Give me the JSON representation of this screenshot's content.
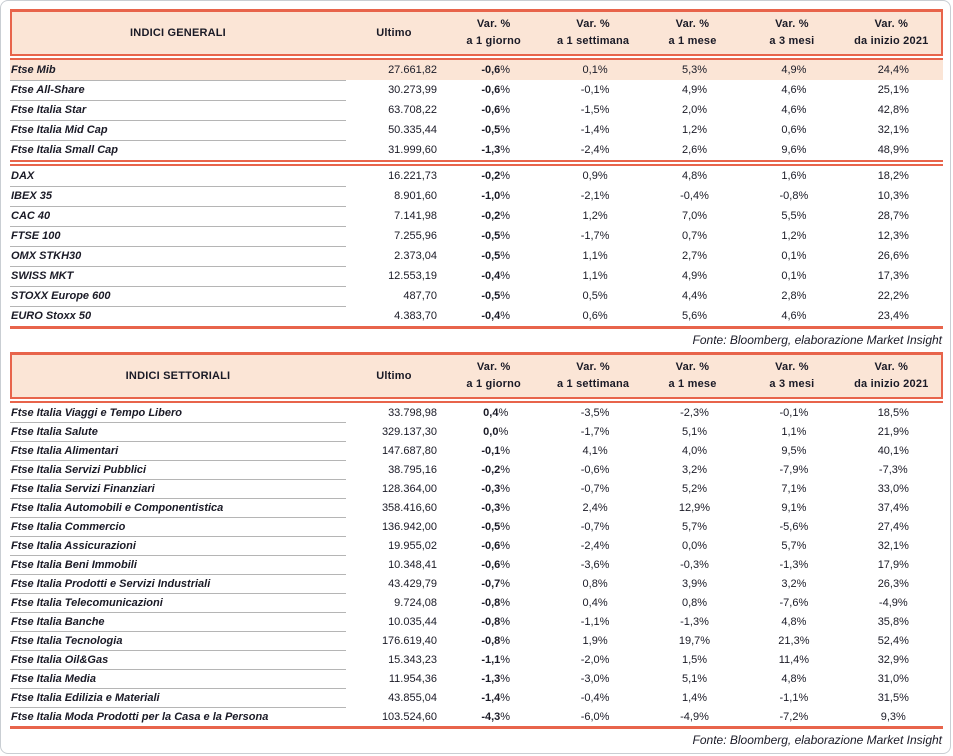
{
  "colors": {
    "accent": "#e8644b",
    "header_bg": "#fbe5d6",
    "row_highlight_bg": "#fbe5d6",
    "row_separator": "#b5b5b5",
    "text": "#1a1a26"
  },
  "tables": [
    {
      "title": "INDICI GENERALI",
      "columns": {
        "ultimo": "Ultimo",
        "var_label": "Var. %",
        "periods": [
          "a 1 giorno",
          "a 1 settimana",
          "a 1 mese",
          "a 3 mesi",
          "da inizio 2021"
        ]
      },
      "source": "Fonte: Bloomberg, elaborazione Market Insight",
      "groups": [
        {
          "rows": [
            {
              "name": "Ftse Mib",
              "ultimo": "27.661,82",
              "var_1g": "-0,6%",
              "var_1w": "0,1%",
              "var_1m": "5,3%",
              "var_3m": "4,9%",
              "var_ytd": "24,4%",
              "highlight": true
            },
            {
              "name": "Ftse All-Share",
              "ultimo": "30.273,99",
              "var_1g": "-0,6%",
              "var_1w": "-0,1%",
              "var_1m": "4,9%",
              "var_3m": "4,6%",
              "var_ytd": "25,1%"
            },
            {
              "name": "Ftse Italia Star",
              "ultimo": "63.708,22",
              "var_1g": "-0,6%",
              "var_1w": "-1,5%",
              "var_1m": "2,0%",
              "var_3m": "4,6%",
              "var_ytd": "42,8%"
            },
            {
              "name": "Ftse Italia Mid Cap",
              "ultimo": "50.335,44",
              "var_1g": "-0,5%",
              "var_1w": "-1,4%",
              "var_1m": "1,2%",
              "var_3m": "0,6%",
              "var_ytd": "32,1%"
            },
            {
              "name": "Ftse Italia Small Cap",
              "ultimo": "31.999,60",
              "var_1g": "-1,3%",
              "var_1w": "-2,4%",
              "var_1m": "2,6%",
              "var_3m": "9,6%",
              "var_ytd": "48,9%"
            }
          ]
        },
        {
          "rows": [
            {
              "name": "DAX",
              "ultimo": "16.221,73",
              "var_1g": "-0,2%",
              "var_1w": "0,9%",
              "var_1m": "4,8%",
              "var_3m": "1,6%",
              "var_ytd": "18,2%"
            },
            {
              "name": "IBEX 35",
              "ultimo": "8.901,60",
              "var_1g": "-1,0%",
              "var_1w": "-2,1%",
              "var_1m": "-0,4%",
              "var_3m": "-0,8%",
              "var_ytd": "10,3%"
            },
            {
              "name": "CAC 40",
              "ultimo": "7.141,98",
              "var_1g": "-0,2%",
              "var_1w": "1,2%",
              "var_1m": "7,0%",
              "var_3m": "5,5%",
              "var_ytd": "28,7%"
            },
            {
              "name": "FTSE 100",
              "ultimo": "7.255,96",
              "var_1g": "-0,5%",
              "var_1w": "-1,7%",
              "var_1m": "0,7%",
              "var_3m": "1,2%",
              "var_ytd": "12,3%"
            },
            {
              "name": "OMX STKH30",
              "ultimo": "2.373,04",
              "var_1g": "-0,5%",
              "var_1w": "1,1%",
              "var_1m": "2,7%",
              "var_3m": "0,1%",
              "var_ytd": "26,6%"
            },
            {
              "name": "SWISS MKT",
              "ultimo": "12.553,19",
              "var_1g": "-0,4%",
              "var_1w": "1,1%",
              "var_1m": "4,9%",
              "var_3m": "0,1%",
              "var_ytd": "17,3%"
            },
            {
              "name": "STOXX Europe 600",
              "ultimo": "487,70",
              "var_1g": "-0,5%",
              "var_1w": "0,5%",
              "var_1m": "4,4%",
              "var_3m": "2,8%",
              "var_ytd": "22,2%"
            },
            {
              "name": "EURO Stoxx 50",
              "ultimo": "4.383,70",
              "var_1g": "-0,4%",
              "var_1w": "0,6%",
              "var_1m": "5,6%",
              "var_3m": "4,6%",
              "var_ytd": "23,4%"
            }
          ]
        }
      ]
    },
    {
      "title": "INDICI SETTORIALI",
      "columns": {
        "ultimo": "Ultimo",
        "var_label": "Var. %",
        "periods": [
          "a 1 giorno",
          "a 1 settimana",
          "a 1 mese",
          "a 3 mesi",
          "da inizio 2021"
        ]
      },
      "source": "Fonte: Bloomberg, elaborazione Market Insight",
      "groups": [
        {
          "rows": [
            {
              "name": "Ftse Italia Viaggi e Tempo Libero",
              "ultimo": "33.798,98",
              "var_1g": "0,4%",
              "var_1w": "-3,5%",
              "var_1m": "-2,3%",
              "var_3m": "-0,1%",
              "var_ytd": "18,5%"
            },
            {
              "name": "Ftse Italia Salute",
              "ultimo": "329.137,30",
              "var_1g": "0,0%",
              "var_1w": "-1,7%",
              "var_1m": "5,1%",
              "var_3m": "1,1%",
              "var_ytd": "21,9%"
            },
            {
              "name": "Ftse Italia Alimentari",
              "ultimo": "147.687,80",
              "var_1g": "-0,1%",
              "var_1w": "4,1%",
              "var_1m": "4,0%",
              "var_3m": "9,5%",
              "var_ytd": "40,1%"
            },
            {
              "name": "Ftse Italia Servizi Pubblici",
              "ultimo": "38.795,16",
              "var_1g": "-0,2%",
              "var_1w": "-0,6%",
              "var_1m": "3,2%",
              "var_3m": "-7,9%",
              "var_ytd": "-7,3%"
            },
            {
              "name": "Ftse Italia Servizi Finanziari",
              "ultimo": "128.364,00",
              "var_1g": "-0,3%",
              "var_1w": "-0,7%",
              "var_1m": "5,2%",
              "var_3m": "7,1%",
              "var_ytd": "33,0%"
            },
            {
              "name": "Ftse Italia Automobili e Componentistica",
              "ultimo": "358.416,60",
              "var_1g": "-0,3%",
              "var_1w": "2,4%",
              "var_1m": "12,9%",
              "var_3m": "9,1%",
              "var_ytd": "37,4%"
            },
            {
              "name": "Ftse Italia Commercio",
              "ultimo": "136.942,00",
              "var_1g": "-0,5%",
              "var_1w": "-0,7%",
              "var_1m": "5,7%",
              "var_3m": "-5,6%",
              "var_ytd": "27,4%"
            },
            {
              "name": "Ftse Italia Assicurazioni",
              "ultimo": "19.955,02",
              "var_1g": "-0,6%",
              "var_1w": "-2,4%",
              "var_1m": "0,0%",
              "var_3m": "5,7%",
              "var_ytd": "32,1%"
            },
            {
              "name": "Ftse Italia Beni Immobili",
              "ultimo": "10.348,41",
              "var_1g": "-0,6%",
              "var_1w": "-3,6%",
              "var_1m": "-0,3%",
              "var_3m": "-1,3%",
              "var_ytd": "17,9%"
            },
            {
              "name": "Ftse Italia Prodotti e Servizi Industriali",
              "ultimo": "43.429,79",
              "var_1g": "-0,7%",
              "var_1w": "0,8%",
              "var_1m": "3,9%",
              "var_3m": "3,2%",
              "var_ytd": "26,3%"
            },
            {
              "name": "Ftse Italia Telecomunicazioni",
              "ultimo": "9.724,08",
              "var_1g": "-0,8%",
              "var_1w": "0,4%",
              "var_1m": "0,8%",
              "var_3m": "-7,6%",
              "var_ytd": "-4,9%"
            },
            {
              "name": "Ftse Italia Banche",
              "ultimo": "10.035,44",
              "var_1g": "-0,8%",
              "var_1w": "-1,1%",
              "var_1m": "-1,3%",
              "var_3m": "4,8%",
              "var_ytd": "35,8%"
            },
            {
              "name": "Ftse Italia Tecnologia",
              "ultimo": "176.619,40",
              "var_1g": "-0,8%",
              "var_1w": "1,9%",
              "var_1m": "19,7%",
              "var_3m": "21,3%",
              "var_ytd": "52,4%"
            },
            {
              "name": "Ftse Italia Oil&Gas",
              "ultimo": "15.343,23",
              "var_1g": "-1,1%",
              "var_1w": "-2,0%",
              "var_1m": "1,5%",
              "var_3m": "11,4%",
              "var_ytd": "32,9%"
            },
            {
              "name": "Ftse Italia Media",
              "ultimo": "11.954,36",
              "var_1g": "-1,3%",
              "var_1w": "-3,0%",
              "var_1m": "5,1%",
              "var_3m": "4,8%",
              "var_ytd": "31,0%"
            },
            {
              "name": "Ftse Italia Edilizia e Materiali",
              "ultimo": "43.855,04",
              "var_1g": "-1,4%",
              "var_1w": "-0,4%",
              "var_1m": "1,4%",
              "var_3m": "-1,1%",
              "var_ytd": "31,5%"
            },
            {
              "name": "Ftse Italia Moda Prodotti per la Casa e la Persona",
              "ultimo": "103.524,60",
              "var_1g": "-4,3%",
              "var_1w": "-6,0%",
              "var_1m": "-4,9%",
              "var_3m": "-7,2%",
              "var_ytd": "9,3%"
            }
          ]
        }
      ]
    }
  ]
}
